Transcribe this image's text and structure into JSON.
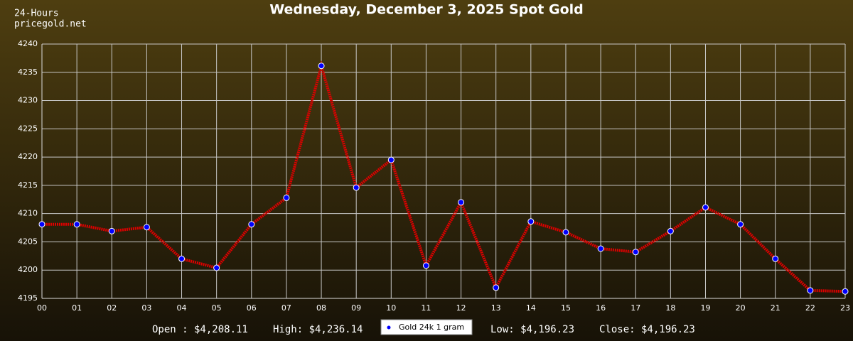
{
  "chart_data": {
    "type": "line",
    "title": "Wednesday, December 3, 2025 Spot Gold",
    "subtitle": [
      "24-Hours",
      "pricegold.net"
    ],
    "categories": [
      "00",
      "01",
      "02",
      "03",
      "04",
      "05",
      "06",
      "07",
      "08",
      "09",
      "10",
      "11",
      "12",
      "13",
      "14",
      "15",
      "16",
      "17",
      "18",
      "19",
      "20",
      "21",
      "22",
      "23"
    ],
    "series": [
      {
        "name": "Gold 24k 1 gram",
        "color": "#dd0000",
        "marker_color": "#0000ff",
        "values": [
          4208.11,
          4208.1,
          4206.9,
          4207.6,
          4202.0,
          4200.4,
          4208.1,
          4212.8,
          4236.14,
          4214.6,
          4219.5,
          4200.8,
          4212.0,
          4196.9,
          4208.6,
          4206.7,
          4203.8,
          4203.2,
          4206.9,
          4211.1,
          4208.1,
          4202.0,
          4196.4,
          4196.23
        ]
      }
    ],
    "ylim": [
      4195,
      4240
    ],
    "yticks": [
      4195,
      4200,
      4205,
      4210,
      4215,
      4220,
      4225,
      4230,
      4235,
      4240
    ],
    "grid": true,
    "stats": [
      "Open : $4,208.11",
      "High: $4,236.14",
      "Low: $4,196.23",
      "Close: $4,196.23"
    ]
  }
}
